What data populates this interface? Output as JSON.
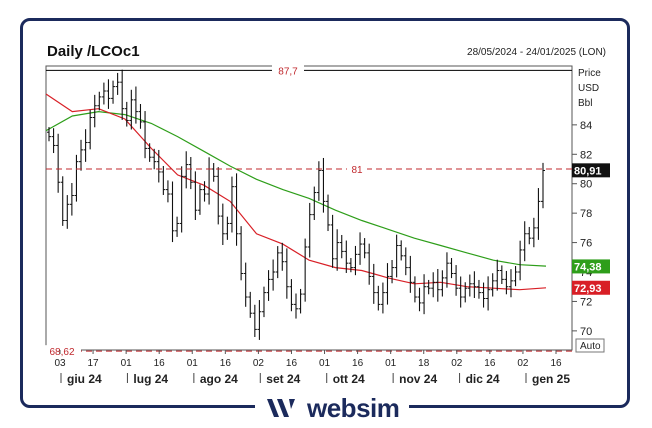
{
  "header": {
    "title": "Daily /LCOc1",
    "date_range": "28/05/2024 - 24/01/2025 (LON)"
  },
  "brand": {
    "name": "websim",
    "icon": "websim-logo-icon",
    "color": "#1b2a5c"
  },
  "chart_data": {
    "type": "ohlc",
    "y_axis_label_lines": [
      "Price",
      "USD",
      "Bbl"
    ],
    "ylim": [
      68.7,
      88.0
    ],
    "y_ticks": [
      70,
      72,
      74,
      76,
      78,
      80,
      82,
      84
    ],
    "scale_mode": "Auto",
    "day_ticks": [
      "03",
      "17",
      "01",
      "16",
      "01",
      "16",
      "02",
      "16",
      "01",
      "16",
      "01",
      "18",
      "02",
      "16",
      "02",
      "16"
    ],
    "month_labels": [
      "giu 24",
      "lug 24",
      "ago 24",
      "set 24",
      "ott 24",
      "nov 24",
      "dic 24",
      "gen 25"
    ],
    "reference_lines": [
      {
        "value": 87.7,
        "label": "87,7",
        "color": "#000000",
        "style": "solid"
      },
      {
        "value": 81,
        "label": "81",
        "color": "#c0282d",
        "style": "dashed"
      },
      {
        "value": 68.62,
        "label": "68,62",
        "color": "#c0282d",
        "style": "dashed"
      }
    ],
    "last_values": [
      {
        "label": "80,91",
        "value": 80.91,
        "color": "#111111"
      },
      {
        "label": "74,38",
        "value": 74.38,
        "color": "#2e9e1a"
      },
      {
        "label": "72,93",
        "value": 72.93,
        "color": "#d81f26"
      }
    ],
    "closes": [
      83.2,
      82.6,
      80.1,
      77.5,
      78.6,
      79.2,
      81.5,
      82.3,
      82.8,
      84.5,
      85.3,
      85.9,
      86.3,
      85.8,
      86.6,
      86.9,
      85.1,
      84.3,
      85.7,
      84.9,
      84.2,
      82.4,
      81.8,
      81.5,
      80.8,
      79.6,
      79.3,
      76.8,
      77.3,
      80.5,
      81.3,
      80.1,
      78.2,
      79.6,
      79.3,
      81.0,
      80.5,
      77.8,
      76.6,
      77.3,
      79.8,
      76.6,
      73.9,
      72.3,
      71.2,
      70.1,
      71.3,
      72.6,
      73.5,
      74.0,
      75.3,
      74.7,
      73.0,
      71.8,
      71.5,
      72.5,
      75.7,
      77.9,
      79.4,
      80.9,
      78.8,
      77.2,
      74.9,
      76.0,
      75.4,
      74.6,
      74.3,
      75.2,
      75.9,
      75.3,
      73.7,
      72.6,
      71.8,
      72.6,
      73.7,
      74.3,
      75.8,
      75.1,
      74.3,
      73.3,
      72.3,
      71.9,
      73.0,
      72.9,
      73.3,
      72.8,
      73.6,
      74.6,
      73.9,
      72.9,
      72.3,
      72.9,
      73.2,
      73.0,
      72.6,
      72.2,
      72.8,
      73.4,
      74.1,
      73.5,
      73.0,
      73.4,
      74.0,
      75.5,
      76.6,
      76.3,
      77.0,
      78.8,
      80.9
    ],
    "moving_averages": [
      {
        "name": "",
        "color": "#2e9e1a",
        "values": [
          83.6,
          84.6,
          84.9,
          84.7,
          84.1,
          83.2,
          82.2,
          81.2,
          80.3,
          79.6,
          79.0,
          78.2,
          77.5,
          76.9,
          76.3,
          75.8,
          75.3,
          74.8,
          74.5,
          74.4
        ]
      },
      {
        "name": "",
        "color": "#d81f26",
        "values": [
          86.1,
          84.9,
          85.1,
          84.4,
          82.4,
          80.6,
          79.9,
          78.8,
          76.6,
          75.9,
          74.8,
          74.3,
          74.1,
          73.6,
          73.2,
          73.3,
          73.0,
          72.9,
          72.8,
          72.93
        ]
      }
    ]
  }
}
